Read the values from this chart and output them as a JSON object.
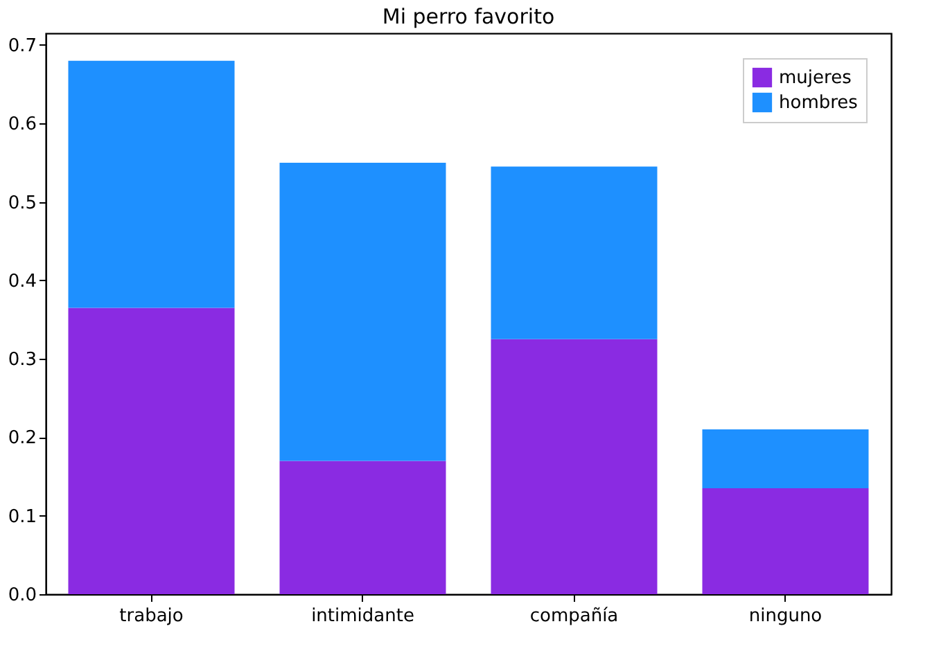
{
  "chart_data": {
    "type": "bar",
    "title": "Mi perro favorito",
    "stacked": true,
    "categories": [
      "trabajo",
      "intimidante",
      "compañía",
      "ninguno"
    ],
    "series": [
      {
        "name": "mujeres",
        "color": "#8a2be2",
        "values": [
          0.365,
          0.17,
          0.325,
          0.135
        ]
      },
      {
        "name": "hombres",
        "color": "#1e90ff",
        "values": [
          0.315,
          0.38,
          0.22,
          0.075
        ]
      }
    ],
    "ylim": [
      0,
      0.715
    ],
    "yticks": [
      {
        "value": 0,
        "label": "0.0"
      },
      0.1,
      0.2,
      0.3,
      0.4,
      0.5,
      0.6,
      0.7
    ],
    "grid": false,
    "legend": "top right"
  }
}
